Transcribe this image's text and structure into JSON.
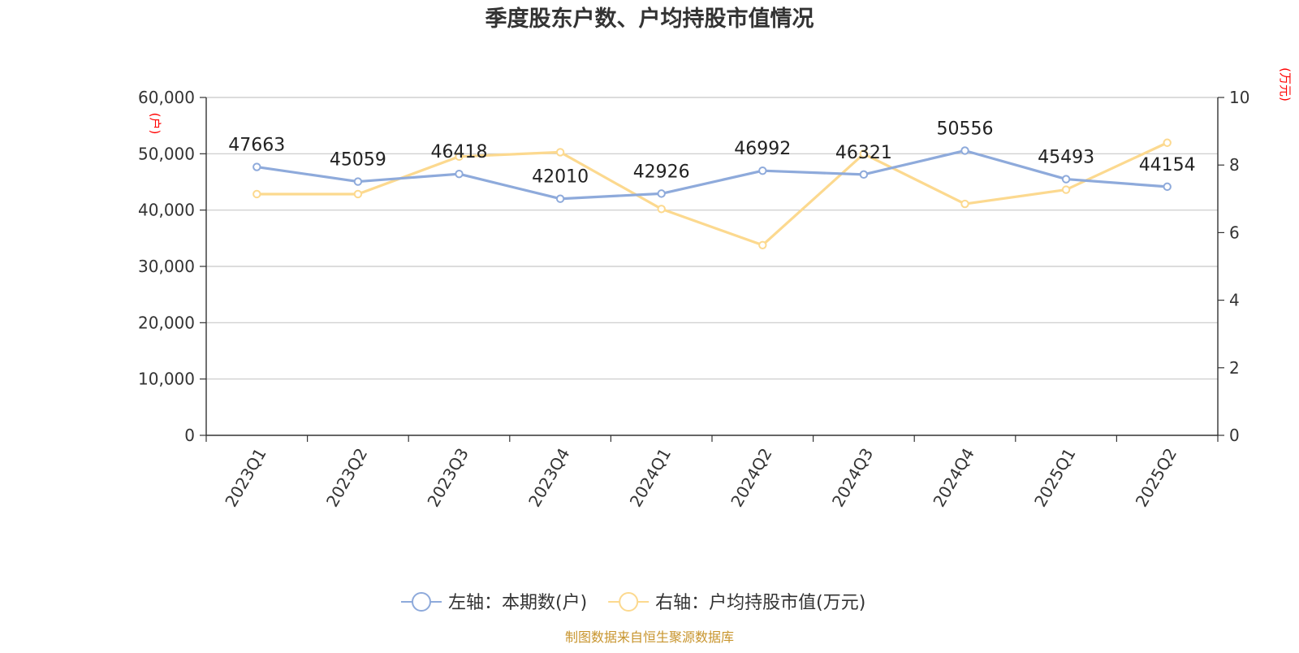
{
  "title": "季度股东户数、户均持股市值情况",
  "source": "制图数据来自恒生聚源数据库",
  "chart_data": {
    "type": "line",
    "categories": [
      "2023Q1",
      "2023Q2",
      "2023Q3",
      "2023Q4",
      "2024Q1",
      "2024Q2",
      "2024Q3",
      "2024Q4",
      "2025Q1",
      "2025Q2"
    ],
    "y_left": {
      "unit": "(户)",
      "ylim": [
        0,
        60000
      ],
      "ticks": [
        "0",
        "10,000",
        "20,000",
        "30,000",
        "40,000",
        "50,000",
        "60,000"
      ]
    },
    "y_right": {
      "unit": "(万元)",
      "ylim": [
        0,
        10
      ],
      "ticks": [
        "0",
        "2",
        "4",
        "6",
        "8",
        "10"
      ]
    },
    "grid": true,
    "legend_position": "bottom-center",
    "series": [
      {
        "name": "左轴：本期数(户)",
        "axis": "left",
        "color": "#8eaadb",
        "values": [
          47663,
          45059,
          46418,
          42010,
          42926,
          46992,
          46321,
          50556,
          45493,
          44154
        ],
        "labels": [
          "47663",
          "45059",
          "46418",
          "42010",
          "42926",
          "46992",
          "46321",
          "50556",
          "45493",
          "44154"
        ]
      },
      {
        "name": "右轴：户均持股市值(万元)",
        "axis": "right",
        "color": "#fcd98f",
        "values": [
          7.14,
          7.14,
          8.25,
          8.38,
          6.7,
          5.63,
          8.33,
          6.85,
          7.27,
          8.66
        ]
      }
    ]
  }
}
